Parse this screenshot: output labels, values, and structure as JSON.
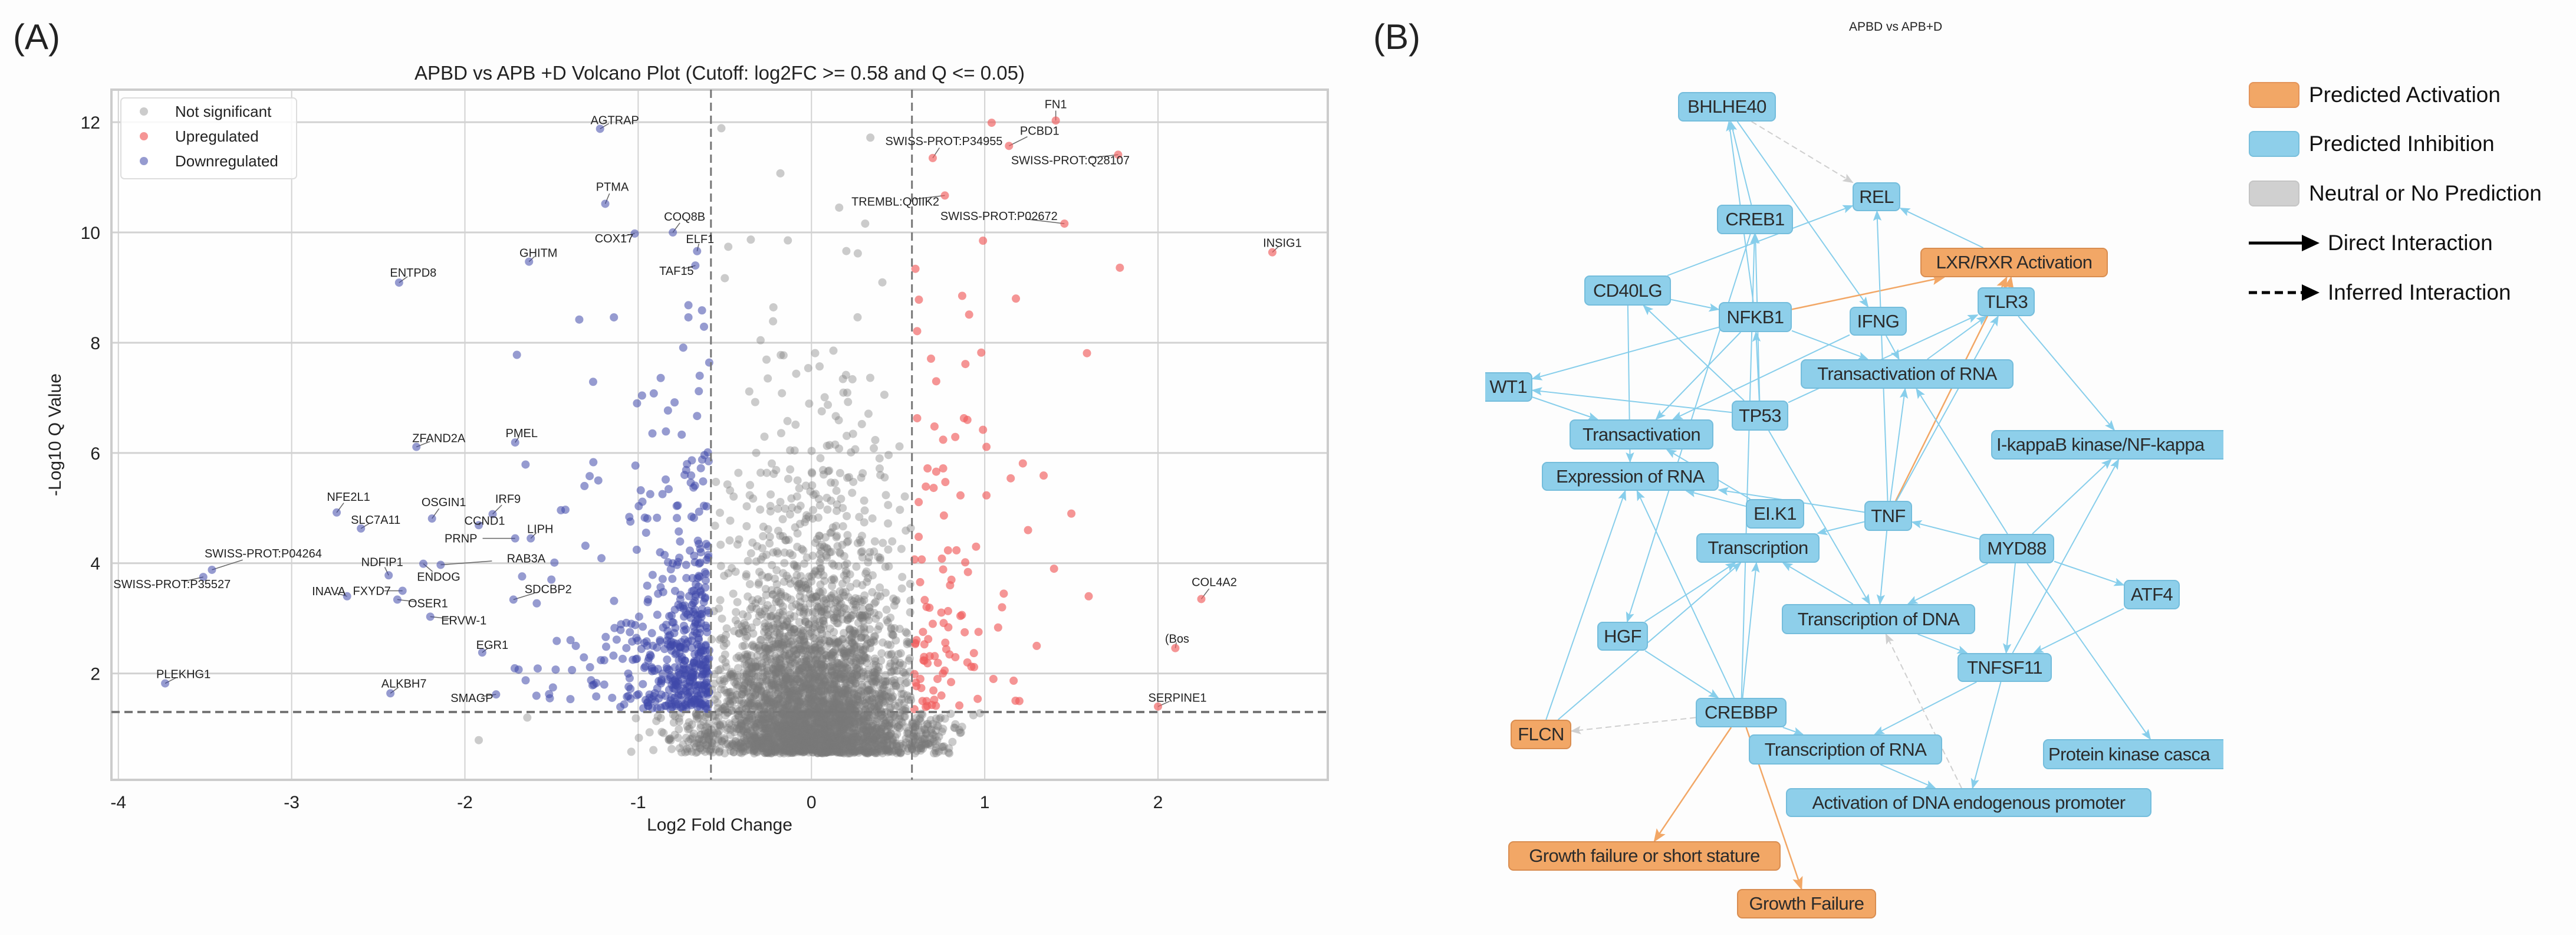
{
  "panel_a": {
    "label": "(A)"
  },
  "panel_b": {
    "label": "(B)",
    "title": "APBD vs APB+D",
    "legend": {
      "activation": "Predicted Activation",
      "inhibition": "Predicted Inhibition",
      "neutral": "Neutral or No Prediction",
      "direct": "Direct Interaction",
      "inferred": "Inferred Interaction"
    },
    "colors": {
      "activation": "#f2a766",
      "inhibition": "#8ecfea",
      "neutral": "#d0d0d0",
      "edge_direct": "#87ceeb",
      "edge_activation": "#f2a766",
      "edge_inferred": "#cfcfcf"
    },
    "nodes": {
      "BHLHE40": {
        "label": "BHLHE40",
        "state": "inhibition"
      },
      "REL": {
        "label": "REL",
        "state": "inhibition"
      },
      "CREB1": {
        "label": "CREB1",
        "state": "inhibition"
      },
      "LXR": {
        "label": "LXR/RXR Activation",
        "state": "activation"
      },
      "CD40LG": {
        "label": "CD40LG",
        "state": "inhibition"
      },
      "NFKB1": {
        "label": "NFKB1",
        "state": "inhibition"
      },
      "IFNG": {
        "label": "IFNG",
        "state": "inhibition"
      },
      "TLR3": {
        "label": "TLR3",
        "state": "inhibition"
      },
      "WT1": {
        "label": "WT1",
        "state": "inhibition"
      },
      "TransRNA": {
        "label": "Transactivation of RNA",
        "state": "inhibition"
      },
      "TP53": {
        "label": "TP53",
        "state": "inhibition"
      },
      "Transactivation": {
        "label": "Transactivation",
        "state": "inhibition"
      },
      "IkB": {
        "label": "I-kappaB kinase/NF-kappa",
        "state": "inhibition"
      },
      "ExprRNA": {
        "label": "Expression of RNA",
        "state": "inhibition"
      },
      "ELK1": {
        "label": "EI.K1",
        "state": "inhibition"
      },
      "TNF": {
        "label": "TNF",
        "state": "inhibition"
      },
      "Transcription": {
        "label": "Transcription",
        "state": "inhibition"
      },
      "MYD88": {
        "label": "MYD88",
        "state": "inhibition"
      },
      "ATF4": {
        "label": "ATF4",
        "state": "inhibition"
      },
      "TranscDNA": {
        "label": "Transcription of DNA",
        "state": "inhibition"
      },
      "HGF": {
        "label": "HGF",
        "state": "inhibition"
      },
      "TNFSF11": {
        "label": "TNFSF11",
        "state": "inhibition"
      },
      "CREBBP": {
        "label": "CREBBP",
        "state": "inhibition"
      },
      "FLCN": {
        "label": "FLCN",
        "state": "activation"
      },
      "TranscRNA": {
        "label": "Transcription of RNA",
        "state": "inhibition"
      },
      "PKC": {
        "label": "Protein kinase casca",
        "state": "inhibition"
      },
      "ActDNA": {
        "label": "Activation of DNA endogenous promoter",
        "state": "inhibition"
      },
      "GrowthShort": {
        "label": "Growth failure or short stature",
        "state": "activation"
      },
      "GrowthFailure": {
        "label": "Growth Failure",
        "state": "activation"
      }
    },
    "edges": [
      [
        "CREB1",
        "BHLHE40",
        "direct"
      ],
      [
        "NFKB1",
        "BHLHE40",
        "direct"
      ],
      [
        "BHLHE40",
        "REL",
        "inferred"
      ],
      [
        "BHLHE40",
        "IFNG",
        "direct"
      ],
      [
        "CD40LG",
        "REL",
        "direct"
      ],
      [
        "CD40LG",
        "NFKB1",
        "direct"
      ],
      [
        "TP53",
        "CD40LG",
        "direct"
      ],
      [
        "CD40LG",
        "ExprRNA",
        "direct"
      ],
      [
        "NFKB1",
        "WT1",
        "direct"
      ],
      [
        "NFKB1",
        "LXR",
        "activation"
      ],
      [
        "NFKB1",
        "TransRNA",
        "direct"
      ],
      [
        "NFKB1",
        "Transactivation",
        "direct"
      ],
      [
        "TP53",
        "NFKB1",
        "direct"
      ],
      [
        "TP53",
        "CREB1",
        "direct"
      ],
      [
        "TP53",
        "WT1",
        "direct"
      ],
      [
        "TNF",
        "REL",
        "direct"
      ],
      [
        "TP53",
        "TLR3",
        "direct"
      ],
      [
        "WT1",
        "Transactivation",
        "direct"
      ],
      [
        "IFNG",
        "Transactivation",
        "direct"
      ],
      [
        "IFNG",
        "TransRNA",
        "direct"
      ],
      [
        "LXR",
        "REL",
        "direct"
      ],
      [
        "TLR3",
        "IkB",
        "direct"
      ],
      [
        "TLR3",
        "LXR",
        "activation"
      ],
      [
        "TransRNA",
        "TLR3",
        "direct"
      ],
      [
        "TNF",
        "LXR",
        "activation"
      ],
      [
        "TNF",
        "TransRNA",
        "direct"
      ],
      [
        "TNF",
        "ExprRNA",
        "direct"
      ],
      [
        "TNF",
        "Transcription",
        "direct"
      ],
      [
        "TNF",
        "TranscDNA",
        "direct"
      ],
      [
        "MYD88",
        "TNF",
        "direct"
      ],
      [
        "MYD88",
        "TranscDNA",
        "direct"
      ],
      [
        "MYD88",
        "TNFSF11",
        "direct"
      ],
      [
        "MYD88",
        "IkB",
        "direct"
      ],
      [
        "MYD88",
        "PKC",
        "direct"
      ],
      [
        "MYD88",
        "ATF4",
        "direct"
      ],
      [
        "ATF4",
        "TNFSF11",
        "direct"
      ],
      [
        "TNFSF11",
        "IkB",
        "direct"
      ],
      [
        "TNFSF11",
        "TranscRNA",
        "direct"
      ],
      [
        "TNFSF11",
        "ActDNA",
        "direct"
      ],
      [
        "TranscDNA",
        "TNFSF11",
        "direct"
      ],
      [
        "TranscDNA",
        "Transcription",
        "direct"
      ],
      [
        "TranscRNA",
        "ActDNA",
        "direct"
      ],
      [
        "ActDNA",
        "TranscDNA",
        "inferred"
      ],
      [
        "CREBBP",
        "FLCN",
        "inferred"
      ],
      [
        "CREBBP",
        "GrowthShort",
        "activation"
      ],
      [
        "CREBBP",
        "GrowthFailure",
        "activation"
      ],
      [
        "CREBBP",
        "TranscRNA",
        "direct"
      ],
      [
        "CREBBP",
        "Transcription",
        "direct"
      ],
      [
        "CREBBP",
        "ExprRNA",
        "direct"
      ],
      [
        "CREBBP",
        "CREB1",
        "direct"
      ],
      [
        "HGF",
        "Transcription",
        "direct"
      ],
      [
        "HGF",
        "CREBBP",
        "direct"
      ],
      [
        "CREB1",
        "HGF",
        "direct"
      ],
      [
        "FLCN",
        "ExprRNA",
        "direct"
      ],
      [
        "FLCN",
        "Transcription",
        "direct"
      ],
      [
        "ELK1",
        "Transactivation",
        "direct"
      ],
      [
        "ELK1",
        "ExprRNA",
        "direct"
      ],
      [
        "TNF",
        "TLR3",
        "direct"
      ],
      [
        "MYD88",
        "TransRNA",
        "direct"
      ],
      [
        "TP53",
        "TranscDNA",
        "direct"
      ]
    ]
  },
  "chart_data": {
    "type": "scatter",
    "title": "APBD vs APB +D Volcano Plot (Cutoff: log2FC >= 0.58 and Q <= 0.05)",
    "xlabel": "Log2 Fold Change",
    "ylabel": "-Log10 Q Value",
    "xlim": [
      -4.04,
      2.98
    ],
    "ylim": [
      0.07,
      12.59
    ],
    "xticks": [
      -4,
      -3,
      -2,
      -1,
      0,
      1,
      2
    ],
    "xtick_labels": [
      "-4",
      "-3",
      "-2",
      "-1",
      "0",
      "1",
      "2"
    ],
    "yticks": [
      2,
      4,
      6,
      8,
      10,
      12
    ],
    "ytick_labels": [
      "2",
      "4",
      "6",
      "8",
      "10",
      "12"
    ],
    "grid": true,
    "thresholds": {
      "log2fc": 0.58,
      "neg_log10_q": 1.3
    },
    "legend_position": "top-left",
    "legend": [
      {
        "key": "ns",
        "label": "Not significant",
        "color": "#9a9a9a"
      },
      {
        "key": "up",
        "label": "Upregulated",
        "color": "#f07474"
      },
      {
        "key": "down",
        "label": "Downregulated",
        "color": "#4b52ad"
      }
    ],
    "labeled_points": [
      {
        "label": "AGTRAP",
        "x": -1.22,
        "y": 11.88,
        "class": "down"
      },
      {
        "label": "PTMA",
        "x": -1.19,
        "y": 10.52,
        "class": "down"
      },
      {
        "label": "COX17",
        "x": -1.02,
        "y": 9.98,
        "class": "down"
      },
      {
        "label": "COQ8B",
        "x": -0.8,
        "y": 10.0,
        "class": "down"
      },
      {
        "label": "ELF1",
        "x": -0.66,
        "y": 9.66,
        "class": "down"
      },
      {
        "label": "TAF15",
        "x": -0.67,
        "y": 9.4,
        "class": "down"
      },
      {
        "label": "GHITM",
        "x": -1.63,
        "y": 9.47,
        "class": "down"
      },
      {
        "label": "ENTPD8",
        "x": -2.38,
        "y": 9.09,
        "class": "down"
      },
      {
        "label": "ZFAND2A",
        "x": -2.28,
        "y": 6.11,
        "class": "down"
      },
      {
        "label": "PMEL",
        "x": -1.71,
        "y": 6.19,
        "class": "down"
      },
      {
        "label": "NFE2L1",
        "x": -2.74,
        "y": 4.92,
        "class": "down"
      },
      {
        "label": "SLC7A11",
        "x": -2.6,
        "y": 4.63,
        "class": "down"
      },
      {
        "label": "OSGIN1",
        "x": -2.19,
        "y": 4.81,
        "class": "down"
      },
      {
        "label": "IRF9",
        "x": -1.84,
        "y": 4.89,
        "class": "down"
      },
      {
        "label": "CCND1",
        "x": -1.92,
        "y": 4.69,
        "class": "down"
      },
      {
        "label": "LIPH",
        "x": -1.62,
        "y": 4.45,
        "class": "down"
      },
      {
        "label": "PRNP",
        "x": -1.71,
        "y": 4.45,
        "class": "down"
      },
      {
        "label": "SWISS-PROT:P04264",
        "x": -3.46,
        "y": 3.88,
        "class": "down"
      },
      {
        "label": "SWISS-PROT:P35527",
        "x": -3.51,
        "y": 3.75,
        "class": "down"
      },
      {
        "label": "NDFIP1",
        "x": -2.44,
        "y": 3.78,
        "class": "down"
      },
      {
        "label": "ENDOG",
        "x": -2.24,
        "y": 3.99,
        "class": "down"
      },
      {
        "label": "RAB3A",
        "x": -2.14,
        "y": 3.97,
        "class": "down"
      },
      {
        "label": "INAVA",
        "x": -2.68,
        "y": 3.4,
        "class": "down"
      },
      {
        "label": "FXYD7",
        "x": -2.36,
        "y": 3.5,
        "class": "down"
      },
      {
        "label": "OSER1",
        "x": -2.39,
        "y": 3.34,
        "class": "down"
      },
      {
        "label": "ERVW-1",
        "x": -2.2,
        "y": 3.03,
        "class": "down"
      },
      {
        "label": "SDCBP2",
        "x": -1.72,
        "y": 3.34,
        "class": "down"
      },
      {
        "label": "EGR1",
        "x": -1.9,
        "y": 2.38,
        "class": "down"
      },
      {
        "label": "PLEKHG1",
        "x": -3.73,
        "y": 1.82,
        "class": "down"
      },
      {
        "label": "ALKBH7",
        "x": -2.43,
        "y": 1.64,
        "class": "down"
      },
      {
        "label": "SMAGP",
        "x": -1.82,
        "y": 1.62,
        "class": "down"
      },
      {
        "label": "FN1",
        "x": 1.41,
        "y": 12.03,
        "class": "up"
      },
      {
        "label": "PCBD1",
        "x": 1.14,
        "y": 11.57,
        "class": "up"
      },
      {
        "label": "SWISS-PROT:P34955",
        "x": 0.7,
        "y": 11.35,
        "class": "up"
      },
      {
        "label": "SWISS-PROT:Q28107",
        "x": 1.77,
        "y": 11.41,
        "class": "up"
      },
      {
        "label": "TREMBL:Q0IIK2",
        "x": 0.77,
        "y": 10.67,
        "class": "up"
      },
      {
        "label": "SWISS-PROT:P02672",
        "x": 1.46,
        "y": 10.16,
        "class": "up"
      },
      {
        "label": "INSIG1",
        "x": 2.66,
        "y": 9.64,
        "class": "up"
      },
      {
        "label": "COL4A2",
        "x": 2.25,
        "y": 3.35,
        "class": "up"
      },
      {
        "label": "(Bos",
        "x": 2.1,
        "y": 2.46,
        "class": "up"
      },
      {
        "label": "SERPINE1",
        "x": 2.0,
        "y": 1.4,
        "class": "up"
      }
    ],
    "points": {
      "up": [
        [
          1.04,
          11.99
        ],
        [
          0.99,
          9.85
        ],
        [
          1.78,
          9.36
        ],
        [
          0.6,
          9.34
        ],
        [
          0.87,
          8.85
        ],
        [
          1.18,
          8.8
        ],
        [
          0.62,
          8.78
        ],
        [
          0.91,
          8.51
        ],
        [
          0.61,
          8.21
        ],
        [
          0.98,
          7.82
        ],
        [
          1.59,
          7.81
        ],
        [
          0.69,
          7.71
        ],
        [
          0.72,
          7.3
        ],
        [
          0.61,
          6.63
        ],
        [
          0.71,
          6.48
        ],
        [
          0.88,
          6.63
        ],
        [
          0.9,
          6.6
        ],
        [
          0.99,
          6.42
        ],
        [
          0.76,
          6.24
        ],
        [
          0.83,
          6.29
        ],
        [
          1.01,
          6.11
        ],
        [
          1.22,
          5.81
        ],
        [
          1.34,
          5.59
        ],
        [
          1.15,
          5.54
        ],
        [
          0.67,
          5.72
        ],
        [
          0.72,
          5.66
        ],
        [
          0.76,
          5.72
        ],
        [
          0.66,
          5.39
        ],
        [
          0.86,
          5.23
        ],
        [
          1.01,
          5.23
        ],
        [
          1.25,
          4.6
        ],
        [
          0.95,
          4.3
        ],
        [
          1.4,
          3.9
        ],
        [
          0.8,
          3.6
        ],
        [
          1.1,
          3.2
        ],
        [
          0.7,
          2.9
        ],
        [
          1.3,
          2.5
        ],
        [
          0.9,
          2.2
        ],
        [
          1.05,
          1.9
        ],
        [
          0.75,
          1.6
        ],
        [
          1.2,
          1.5
        ],
        [
          0.65,
          2.3
        ],
        [
          1.5,
          4.9
        ],
        [
          1.6,
          3.4
        ]
      ],
      "down": [
        [
          -1.34,
          8.42
        ],
        [
          -1.14,
          8.46
        ],
        [
          -0.71,
          8.68
        ],
        [
          -0.71,
          8.46
        ],
        [
          -0.62,
          8.29
        ],
        [
          -0.74,
          7.91
        ],
        [
          -1.7,
          7.78
        ],
        [
          -0.59,
          7.64
        ],
        [
          -1.26,
          7.29
        ],
        [
          -0.87,
          7.36
        ],
        [
          -0.91,
          7.08
        ],
        [
          -0.65,
          7.12
        ],
        [
          -0.66,
          6.67
        ],
        [
          -0.84,
          6.39
        ],
        [
          -1.65,
          5.79
        ],
        [
          -1.28,
          5.58
        ],
        [
          -1.42,
          4.97
        ],
        [
          -1.31,
          5.4
        ],
        [
          -1.67,
          3.76
        ],
        [
          -1.69,
          2.07
        ],
        [
          -1.58,
          2.09
        ],
        [
          -1.51,
          1.55
        ],
        [
          -1.47,
          2.59
        ],
        [
          -1.36,
          2.5
        ]
      ],
      "ns": [
        [
          -0.52,
          11.89
        ],
        [
          -0.35,
          9.87
        ],
        [
          -0.48,
          9.74
        ],
        [
          -0.5,
          9.17
        ],
        [
          0.34,
          11.72
        ],
        [
          0.16,
          10.45
        ],
        [
          0.31,
          10.16
        ],
        [
          -1.92,
          0.79
        ],
        [
          -1.64,
          1.2
        ]
      ]
    },
    "approximate_additional_counts": {
      "ns": 3600,
      "down": 460,
      "up": 70
    }
  }
}
